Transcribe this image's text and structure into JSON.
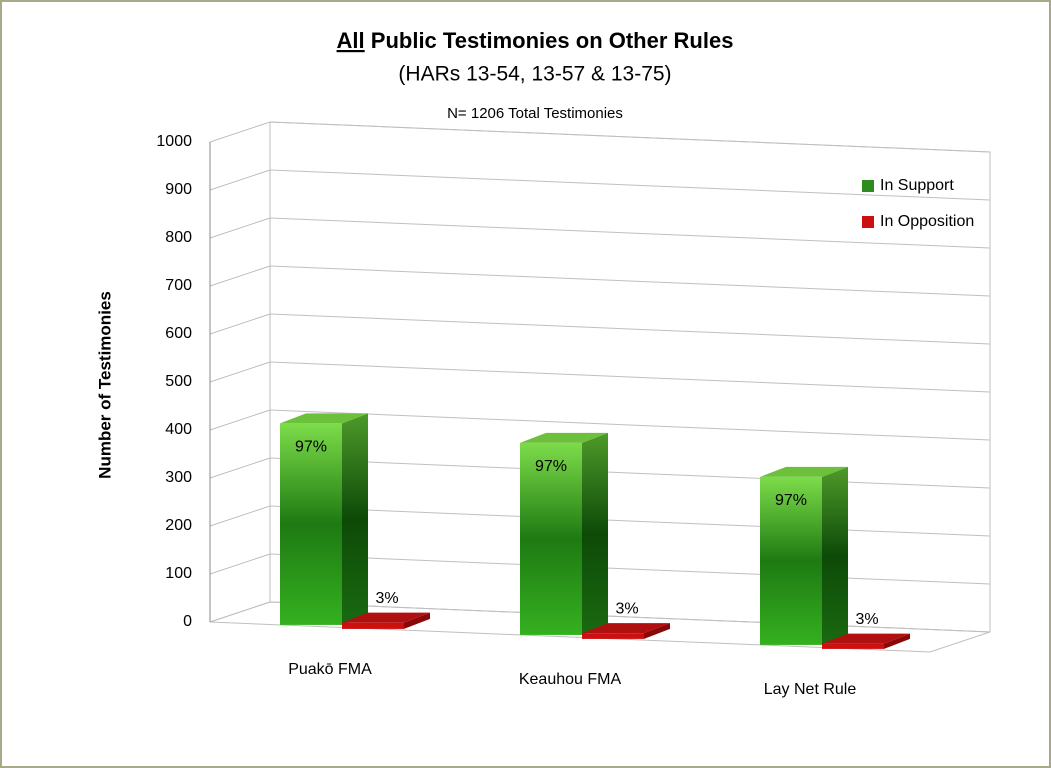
{
  "chart_data": {
    "type": "bar3d",
    "title": "All Public Testimonies on Other Rules",
    "title_underlined": "All",
    "subtitle": "(HARs 13-54, 13-57 & 13-75)",
    "annotation": "N= 1206 Total Testimonies",
    "ylabel": "Number of Testimonies",
    "categories": [
      "Puakō FMA",
      "Keauhou FMA",
      "Lay Net Rule"
    ],
    "series": [
      {
        "name": "In Support",
        "color": "#2e8b1e",
        "values": [
          420,
          400,
          350
        ],
        "value_labels": [
          "97%",
          "97%",
          "97%"
        ]
      },
      {
        "name": "In Opposition",
        "color": "#cc1010",
        "values": [
          13,
          12,
          11
        ],
        "value_labels": [
          "3%",
          "3%",
          "3%"
        ]
      }
    ],
    "ylim": [
      0,
      1000
    ],
    "yticks": [
      0,
      100,
      200,
      300,
      400,
      500,
      600,
      700,
      800,
      900,
      1000
    ],
    "grid": true,
    "legend": "upper right"
  }
}
